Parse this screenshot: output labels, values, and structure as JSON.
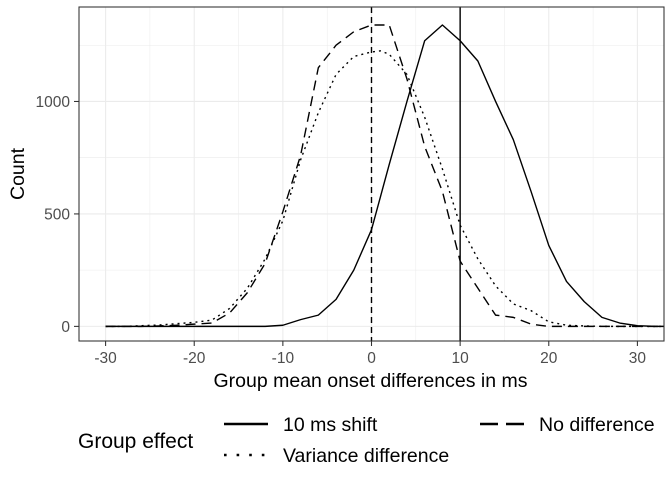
{
  "chart_data": {
    "type": "line",
    "xlabel": "Group mean onset differences in ms",
    "ylabel": "Count",
    "xlim": [
      -33,
      33
    ],
    "ylim": [
      -65,
      1420
    ],
    "x_ticks": [
      -30,
      -20,
      -10,
      0,
      10,
      20,
      30
    ],
    "x_tick_labels": [
      "-30",
      "-20",
      "-10",
      "0",
      "10",
      "20",
      "30"
    ],
    "y_ticks": [
      0,
      500,
      1000
    ],
    "y_tick_labels": [
      "0",
      "500",
      "1000"
    ],
    "grid": true,
    "legend": {
      "title": "Group effect",
      "position": "bottom"
    },
    "reference_lines": [
      {
        "x": 0,
        "style": "dashed"
      },
      {
        "x": 10,
        "style": "solid"
      }
    ],
    "series": [
      {
        "name": "10 ms shift",
        "style": "solid",
        "x": [
          -30,
          -28,
          -26,
          -24,
          -22,
          -20,
          -18,
          -16,
          -14,
          -12,
          -10,
          -8,
          -6,
          -4,
          -2,
          0,
          2,
          4,
          6,
          8,
          10,
          12,
          14,
          16,
          18,
          20,
          22,
          24,
          26,
          28,
          30,
          32,
          34
        ],
        "y": [
          0,
          0,
          0,
          0,
          0,
          0,
          0,
          0,
          0,
          0,
          5,
          30,
          50,
          120,
          250,
          430,
          720,
          1000,
          1270,
          1340,
          1270,
          1180,
          1000,
          830,
          600,
          360,
          200,
          110,
          40,
          15,
          3,
          0,
          0
        ]
      },
      {
        "name": "Variance difference",
        "style": "dotted",
        "x": [
          -30,
          -28,
          -26,
          -24,
          -22,
          -20,
          -18,
          -16,
          -14,
          -12,
          -10,
          -8,
          -6,
          -4,
          -2,
          0,
          1,
          2,
          4,
          6,
          8,
          10,
          12,
          14,
          16,
          18,
          20,
          22,
          24,
          26,
          28,
          30,
          32,
          34
        ],
        "y": [
          0,
          0,
          3,
          6,
          12,
          18,
          28,
          80,
          170,
          300,
          470,
          740,
          950,
          1120,
          1200,
          1220,
          1225,
          1210,
          1120,
          930,
          700,
          450,
          300,
          180,
          100,
          70,
          20,
          5,
          2,
          0,
          0,
          0,
          0,
          0
        ]
      },
      {
        "name": "No difference",
        "style": "dashed",
        "x": [
          -30,
          -28,
          -26,
          -24,
          -22,
          -20,
          -18,
          -16,
          -14,
          -12,
          -10,
          -8,
          -6,
          -4,
          -2,
          0,
          2,
          4,
          6,
          8,
          10,
          12,
          14,
          16,
          18,
          20,
          22,
          24,
          26,
          28,
          30,
          32,
          34
        ],
        "y": [
          0,
          0,
          0,
          2,
          5,
          10,
          15,
          60,
          150,
          280,
          510,
          760,
          1150,
          1250,
          1310,
          1340,
          1340,
          1100,
          800,
          600,
          290,
          170,
          50,
          40,
          10,
          0,
          0,
          0,
          0,
          0,
          0,
          0,
          0
        ]
      }
    ]
  }
}
